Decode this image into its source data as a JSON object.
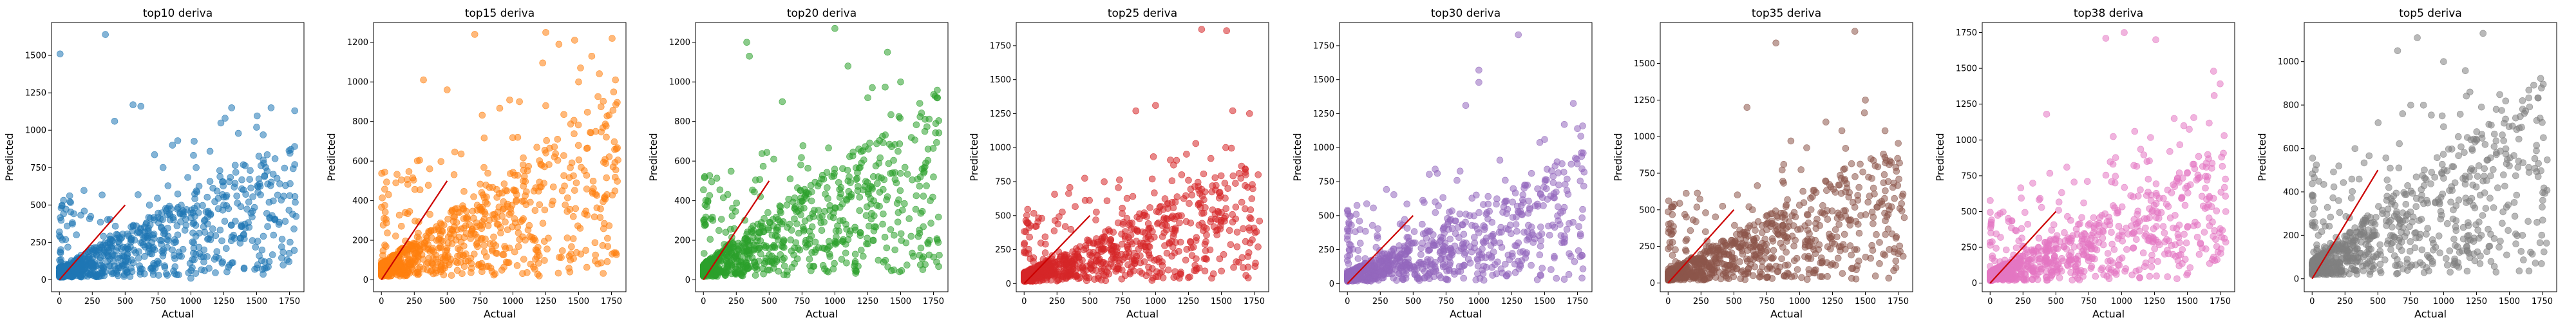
{
  "chart_data": [
    {
      "type": "scatter",
      "title": "top10 deriva",
      "xlabel": "Actual",
      "ylabel": "Predicted",
      "color": "#1f77b4",
      "xlim": [
        -60,
        1860
      ],
      "ylim": [
        -80,
        1720
      ],
      "xticks": [
        0,
        250,
        500,
        750,
        1000,
        1250,
        1500,
        1750
      ],
      "yticks": [
        0,
        250,
        500,
        750,
        1000,
        1250,
        1500
      ],
      "reference_line": {
        "from": [
          0,
          0
        ],
        "to": [
          500,
          500
        ],
        "color": "#cc0000"
      },
      "point_count": 850,
      "points": [
        [
          5,
          1510
        ],
        [
          350,
          1640
        ],
        [
          1610,
          1150
        ],
        [
          1790,
          1130
        ],
        [
          1310,
          1150
        ],
        [
          560,
          1170
        ],
        [
          620,
          1160
        ],
        [
          420,
          1060
        ],
        [
          1260,
          1080
        ],
        [
          900,
          930
        ],
        [
          860,
          900
        ],
        [
          1500,
          1020
        ],
        [
          1790,
          770
        ],
        [
          1720,
          630
        ],
        [
          1560,
          690
        ],
        [
          1330,
          620
        ],
        [
          1040,
          750
        ],
        [
          1220,
          730
        ],
        [
          1440,
          520
        ],
        [
          1250,
          500
        ],
        [
          1690,
          220
        ],
        [
          1520,
          160
        ],
        [
          1100,
          200
        ],
        [
          1640,
          400
        ],
        [
          900,
          300
        ],
        [
          700,
          80
        ],
        [
          1000,
          10
        ],
        [
          1150,
          300
        ],
        [
          1400,
          300
        ]
      ]
    },
    {
      "type": "scatter",
      "title": "top15 deriva",
      "xlabel": "Actual",
      "ylabel": "Predicted",
      "color": "#ff7f0e",
      "xlim": [
        -60,
        1860
      ],
      "ylim": [
        -60,
        1300
      ],
      "xticks": [
        0,
        250,
        500,
        750,
        1000,
        1250,
        1500,
        1750
      ],
      "yticks": [
        0,
        200,
        400,
        600,
        800,
        1000,
        1200
      ],
      "reference_line": {
        "from": [
          0,
          0
        ],
        "to": [
          500,
          500
        ],
        "color": "#cc0000"
      },
      "point_count": 850,
      "points": [
        [
          710,
          1240
        ],
        [
          1250,
          1250
        ],
        [
          1350,
          1190
        ],
        [
          1600,
          1130
        ],
        [
          1780,
          1010
        ],
        [
          320,
          1010
        ],
        [
          500,
          960
        ],
        [
          1500,
          1000
        ],
        [
          1050,
          900
        ],
        [
          1250,
          880
        ],
        [
          1340,
          710
        ],
        [
          1630,
          750
        ],
        [
          1100,
          380
        ],
        [
          1460,
          320
        ],
        [
          1720,
          210
        ],
        [
          950,
          90
        ],
        [
          1200,
          20
        ],
        [
          1700,
          420
        ]
      ]
    },
    {
      "type": "scatter",
      "title": "top20 deriva",
      "xlabel": "Actual",
      "ylabel": "Predicted",
      "color": "#2ca02c",
      "xlim": [
        -60,
        1860
      ],
      "ylim": [
        -60,
        1300
      ],
      "xticks": [
        0,
        250,
        500,
        750,
        1000,
        1250,
        1500,
        1750
      ],
      "yticks": [
        0,
        200,
        400,
        600,
        800,
        1000,
        1200
      ],
      "reference_line": {
        "from": [
          0,
          0
        ],
        "to": [
          500,
          500
        ],
        "color": "#cc0000"
      },
      "point_count": 850,
      "points": [
        [
          1000,
          1270
        ],
        [
          330,
          1200
        ],
        [
          350,
          1130
        ],
        [
          1400,
          1150
        ],
        [
          1100,
          1080
        ],
        [
          1500,
          1000
        ],
        [
          1250,
          920
        ],
        [
          1780,
          920
        ],
        [
          600,
          900
        ],
        [
          1650,
          520
        ],
        [
          1750,
          520
        ],
        [
          1100,
          500
        ],
        [
          1400,
          420
        ],
        [
          1580,
          220
        ],
        [
          1720,
          200
        ],
        [
          900,
          250
        ],
        [
          1200,
          150
        ]
      ]
    },
    {
      "type": "scatter",
      "title": "top25 deriva",
      "xlabel": "Actual",
      "ylabel": "Predicted",
      "color": "#d62728",
      "xlim": [
        -60,
        1860
      ],
      "ylim": [
        -60,
        1920
      ],
      "xticks": [
        0,
        250,
        500,
        750,
        1000,
        1250,
        1500,
        1750
      ],
      "yticks": [
        0,
        250,
        500,
        750,
        1000,
        1250,
        1500,
        1750
      ],
      "reference_line": {
        "from": [
          0,
          0
        ],
        "to": [
          500,
          500
        ],
        "color": "#cc0000"
      },
      "point_count": 850,
      "points": [
        [
          1350,
          1870
        ],
        [
          1540,
          1860
        ],
        [
          1000,
          1310
        ],
        [
          850,
          1270
        ],
        [
          1420,
          920
        ],
        [
          1250,
          760
        ],
        [
          1780,
          800
        ],
        [
          1550,
          700
        ],
        [
          1680,
          550
        ],
        [
          1150,
          600
        ],
        [
          1330,
          430
        ],
        [
          1620,
          270
        ],
        [
          1760,
          150
        ],
        [
          1050,
          160
        ],
        [
          900,
          380
        ]
      ]
    },
    {
      "type": "scatter",
      "title": "top30 deriva",
      "xlabel": "Actual",
      "ylabel": "Predicted",
      "color": "#9467bd",
      "xlim": [
        -60,
        1860
      ],
      "ylim": [
        -60,
        1920
      ],
      "xticks": [
        0,
        250,
        500,
        750,
        1000,
        1250,
        1500,
        1750
      ],
      "yticks": [
        0,
        250,
        500,
        750,
        1000,
        1250,
        1500,
        1750
      ],
      "reference_line": {
        "from": [
          0,
          0
        ],
        "to": [
          500,
          500
        ],
        "color": "#cc0000"
      },
      "point_count": 850,
      "points": [
        [
          1300,
          1830
        ],
        [
          1000,
          1570
        ],
        [
          1000,
          1480
        ],
        [
          900,
          1310
        ],
        [
          1650,
          1170
        ],
        [
          1500,
          1060
        ],
        [
          1750,
          1140
        ],
        [
          1800,
          820
        ],
        [
          1400,
          810
        ],
        [
          1200,
          760
        ],
        [
          1650,
          560
        ],
        [
          1760,
          420
        ],
        [
          1560,
          430
        ],
        [
          1100,
          450
        ],
        [
          1300,
          300
        ],
        [
          1700,
          200
        ]
      ]
    },
    {
      "type": "scatter",
      "title": "top35 deriva",
      "xlabel": "Actual",
      "ylabel": "Predicted",
      "color": "#8c564b",
      "xlim": [
        -60,
        1860
      ],
      "ylim": [
        -60,
        1780
      ],
      "xticks": [
        0,
        250,
        500,
        750,
        1000,
        1250,
        1500,
        1750
      ],
      "yticks": [
        0,
        250,
        500,
        750,
        1000,
        1250,
        1500
      ],
      "reference_line": {
        "from": [
          0,
          0
        ],
        "to": [
          500,
          500
        ],
        "color": "#cc0000"
      },
      "point_count": 850,
      "points": [
        [
          1420,
          1720
        ],
        [
          820,
          1640
        ],
        [
          1500,
          1250
        ],
        [
          600,
          1200
        ],
        [
          1200,
          1100
        ],
        [
          1650,
          1040
        ],
        [
          1350,
          920
        ],
        [
          1760,
          820
        ],
        [
          1700,
          520
        ],
        [
          1560,
          450
        ],
        [
          1300,
          400
        ],
        [
          1100,
          250
        ],
        [
          1750,
          200
        ],
        [
          1450,
          150
        ]
      ]
    },
    {
      "type": "scatter",
      "title": "top38 deriva",
      "xlabel": "Actual",
      "ylabel": "Predicted",
      "color": "#e377c2",
      "xlim": [
        -60,
        1860
      ],
      "ylim": [
        -60,
        1820
      ],
      "xticks": [
        0,
        250,
        500,
        750,
        1000,
        1250,
        1500,
        1750
      ],
      "yticks": [
        0,
        250,
        500,
        750,
        1000,
        1250,
        1500,
        1750
      ],
      "reference_line": {
        "from": [
          0,
          0
        ],
        "to": [
          500,
          500
        ],
        "color": "#cc0000"
      },
      "point_count": 850,
      "points": [
        [
          1020,
          1750
        ],
        [
          880,
          1710
        ],
        [
          1260,
          1700
        ],
        [
          1700,
          1480
        ],
        [
          430,
          1180
        ],
        [
          1100,
          1060
        ],
        [
          1400,
          1150
        ],
        [
          1780,
          1030
        ],
        [
          1650,
          720
        ],
        [
          1550,
          830
        ],
        [
          1350,
          650
        ],
        [
          1750,
          380
        ],
        [
          1600,
          280
        ],
        [
          1200,
          300
        ],
        [
          1450,
          200
        ]
      ]
    },
    {
      "type": "scatter",
      "title": "top5 deriva",
      "xlabel": "Actual",
      "ylabel": "Predicted",
      "color": "#7f7f7f",
      "xlim": [
        -60,
        1860
      ],
      "ylim": [
        -60,
        1180
      ],
      "xticks": [
        0,
        250,
        500,
        750,
        1000,
        1250,
        1500,
        1750
      ],
      "yticks": [
        0,
        200,
        400,
        600,
        800,
        1000
      ],
      "reference_line": {
        "from": [
          0,
          0
        ],
        "to": [
          500,
          500
        ],
        "color": "#cc0000"
      },
      "point_count": 850,
      "points": [
        [
          1300,
          1130
        ],
        [
          800,
          1110
        ],
        [
          650,
          1050
        ],
        [
          1000,
          1000
        ],
        [
          1200,
          860
        ],
        [
          1400,
          780
        ],
        [
          1600,
          820
        ],
        [
          1750,
          720
        ],
        [
          1500,
          520
        ],
        [
          1650,
          490
        ],
        [
          1300,
          450
        ],
        [
          1000,
          700
        ],
        [
          1750,
          330
        ],
        [
          1600,
          200
        ],
        [
          1350,
          150
        ],
        [
          1100,
          60
        ]
      ]
    }
  ]
}
